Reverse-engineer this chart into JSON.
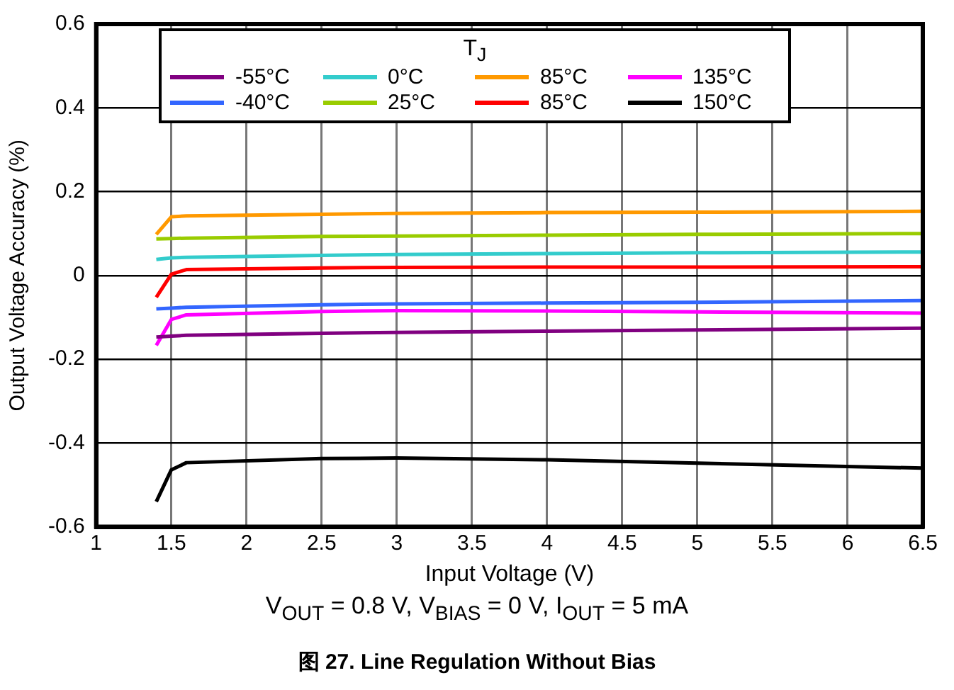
{
  "chart_data": {
    "type": "line",
    "title": "图 27. Line Regulation Without Bias",
    "subtitle": "V$_{OUT}$ = 0.8 V, V$_{BIAS}$ = 0 V, I$_{OUT}$ = 5 mA",
    "xlabel": "Input Voltage (V)",
    "ylabel": "Output Voltage Accuracy (%)",
    "legend_title": "T$_{J}$",
    "legend": "top",
    "grid": true,
    "marker": "none",
    "line_style": "solid",
    "x": [
      1.4,
      1.5,
      1.6,
      2.5,
      3,
      4,
      5,
      6.5
    ],
    "xlim": [
      1,
      6.5
    ],
    "xticks": [
      1,
      1.5,
      2,
      2.5,
      3,
      3.5,
      4,
      4.5,
      5,
      5.5,
      6,
      6.5
    ],
    "ylim": [
      -0.6,
      0.6
    ],
    "yticks": [
      -0.6,
      -0.4,
      -0.2,
      0,
      0.2,
      0.4,
      0.6
    ],
    "series": [
      {
        "name": "-55°C",
        "color": "#800080",
        "values": [
          -0.147,
          -0.145,
          -0.143,
          -0.138,
          -0.136,
          -0.133,
          -0.13,
          -0.126
        ]
      },
      {
        "name": "0°C",
        "color": "#33cccc",
        "values": [
          0.038,
          0.042,
          0.043,
          0.048,
          0.05,
          0.052,
          0.054,
          0.056
        ]
      },
      {
        "name": "85°C",
        "color": "#ff9900",
        "values": [
          0.098,
          0.14,
          0.142,
          0.146,
          0.148,
          0.15,
          0.151,
          0.153
        ]
      },
      {
        "name": "135°C",
        "color": "#ff00ff",
        "values": [
          -0.167,
          -0.105,
          -0.094,
          -0.086,
          -0.084,
          -0.085,
          -0.087,
          -0.09
        ]
      },
      {
        "name": "-40°C",
        "color": "#3366ff",
        "values": [
          -0.08,
          -0.078,
          -0.076,
          -0.07,
          -0.068,
          -0.066,
          -0.064,
          -0.06
        ]
      },
      {
        "name": "25°C",
        "color": "#99cc00",
        "values": [
          0.087,
          0.088,
          0.089,
          0.093,
          0.094,
          0.096,
          0.098,
          0.1
        ]
      },
      {
        "name": "85°C",
        "color": "#ff0000",
        "values": [
          -0.052,
          0.003,
          0.014,
          0.018,
          0.019,
          0.02,
          0.02,
          0.021
        ]
      },
      {
        "name": "150°C",
        "color": "#000000",
        "values": [
          -0.54,
          -0.464,
          -0.447,
          -0.437,
          -0.436,
          -0.44,
          -0.448,
          -0.46
        ]
      }
    ]
  }
}
